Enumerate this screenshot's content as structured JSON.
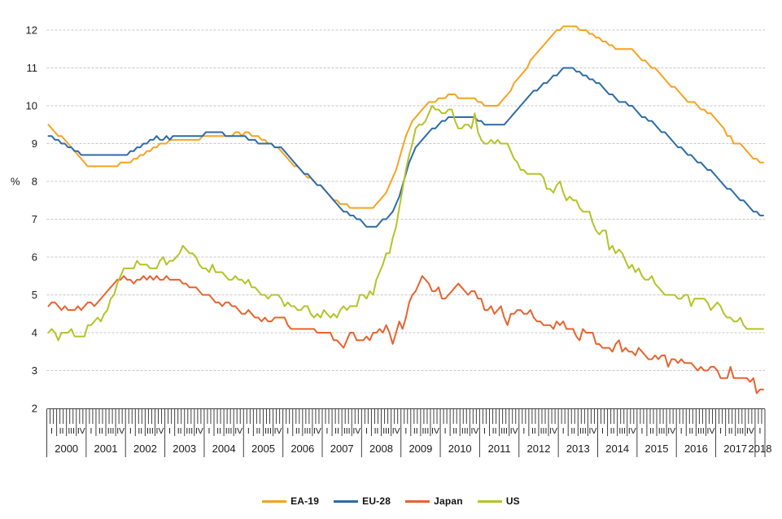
{
  "chart_data": {
    "type": "line",
    "title": "",
    "ylabel": "%",
    "frequency": "monthly",
    "period": "2000-01 to 2018-03",
    "ylim": [
      2,
      12
    ],
    "yticks": [
      2,
      3,
      4,
      5,
      6,
      7,
      8,
      9,
      10,
      11,
      12
    ],
    "grid": "horizontal-dashed",
    "grid_color": "#c6c6c6",
    "axis_color": "#404040",
    "text_color": "#1a1a1a",
    "legend_position": "bottom",
    "x_axis": {
      "quarter_labels": [
        "I",
        "II",
        "III",
        "IV"
      ],
      "years": [
        "2000",
        "2001",
        "2002",
        "2003",
        "2004",
        "2005",
        "2006",
        "2007",
        "2008",
        "2009",
        "2010",
        "2011",
        "2012",
        "2013",
        "2014",
        "2015",
        "2016",
        "2017",
        "2018"
      ]
    },
    "series": [
      {
        "name": "EA-19",
        "color": "#F7A21F",
        "values": [
          9.5,
          9.4,
          9.3,
          9.2,
          9.2,
          9.1,
          9.0,
          8.9,
          8.8,
          8.7,
          8.6,
          8.5,
          8.4,
          8.4,
          8.4,
          8.4,
          8.4,
          8.4,
          8.4,
          8.4,
          8.4,
          8.4,
          8.5,
          8.5,
          8.5,
          8.5,
          8.6,
          8.6,
          8.7,
          8.7,
          8.8,
          8.8,
          8.9,
          8.9,
          9.0,
          9.0,
          9.0,
          9.1,
          9.1,
          9.1,
          9.1,
          9.1,
          9.1,
          9.1,
          9.1,
          9.1,
          9.1,
          9.2,
          9.2,
          9.2,
          9.2,
          9.2,
          9.2,
          9.2,
          9.2,
          9.2,
          9.2,
          9.3,
          9.3,
          9.2,
          9.3,
          9.3,
          9.2,
          9.2,
          9.2,
          9.1,
          9.1,
          9.0,
          9.0,
          8.9,
          8.9,
          8.8,
          8.7,
          8.6,
          8.5,
          8.4,
          8.4,
          8.3,
          8.2,
          8.1,
          8.1,
          8.0,
          7.9,
          7.9,
          7.8,
          7.7,
          7.6,
          7.5,
          7.5,
          7.4,
          7.4,
          7.4,
          7.3,
          7.3,
          7.3,
          7.3,
          7.3,
          7.3,
          7.3,
          7.3,
          7.4,
          7.5,
          7.6,
          7.7,
          7.9,
          8.1,
          8.3,
          8.6,
          8.9,
          9.2,
          9.4,
          9.6,
          9.7,
          9.8,
          9.9,
          10.0,
          10.1,
          10.1,
          10.1,
          10.2,
          10.2,
          10.2,
          10.3,
          10.3,
          10.3,
          10.2,
          10.2,
          10.2,
          10.2,
          10.2,
          10.2,
          10.1,
          10.1,
          10.0,
          10.0,
          10.0,
          10.0,
          10.0,
          10.1,
          10.2,
          10.3,
          10.4,
          10.6,
          10.7,
          10.8,
          10.9,
          11.0,
          11.2,
          11.3,
          11.4,
          11.5,
          11.6,
          11.7,
          11.8,
          11.9,
          12.0,
          12.0,
          12.1,
          12.1,
          12.1,
          12.1,
          12.1,
          12.0,
          12.0,
          12.0,
          11.9,
          11.9,
          11.8,
          11.8,
          11.7,
          11.7,
          11.6,
          11.6,
          11.5,
          11.5,
          11.5,
          11.5,
          11.5,
          11.5,
          11.4,
          11.3,
          11.2,
          11.2,
          11.1,
          11.0,
          11.0,
          10.9,
          10.8,
          10.7,
          10.6,
          10.5,
          10.5,
          10.4,
          10.3,
          10.2,
          10.1,
          10.1,
          10.1,
          10.0,
          9.9,
          9.9,
          9.8,
          9.8,
          9.7,
          9.6,
          9.5,
          9.4,
          9.2,
          9.2,
          9.0,
          9.0,
          9.0,
          8.9,
          8.8,
          8.7,
          8.6,
          8.6,
          8.5,
          8.5
        ]
      },
      {
        "name": "EU-28",
        "color": "#2C6BA8",
        "values": [
          9.2,
          9.2,
          9.1,
          9.1,
          9.0,
          9.0,
          8.9,
          8.9,
          8.8,
          8.8,
          8.7,
          8.7,
          8.7,
          8.7,
          8.7,
          8.7,
          8.7,
          8.7,
          8.7,
          8.7,
          8.7,
          8.7,
          8.7,
          8.7,
          8.7,
          8.8,
          8.8,
          8.9,
          8.9,
          9.0,
          9.0,
          9.1,
          9.1,
          9.2,
          9.1,
          9.1,
          9.2,
          9.1,
          9.2,
          9.2,
          9.2,
          9.2,
          9.2,
          9.2,
          9.2,
          9.2,
          9.2,
          9.2,
          9.3,
          9.3,
          9.3,
          9.3,
          9.3,
          9.3,
          9.2,
          9.2,
          9.2,
          9.2,
          9.2,
          9.2,
          9.2,
          9.1,
          9.1,
          9.1,
          9.0,
          9.0,
          9.0,
          9.0,
          9.0,
          8.9,
          8.9,
          8.9,
          8.8,
          8.7,
          8.6,
          8.5,
          8.4,
          8.3,
          8.2,
          8.2,
          8.1,
          8.0,
          7.9,
          7.9,
          7.8,
          7.7,
          7.6,
          7.5,
          7.4,
          7.3,
          7.2,
          7.2,
          7.1,
          7.1,
          7.0,
          7.0,
          6.9,
          6.8,
          6.8,
          6.8,
          6.8,
          6.9,
          7.0,
          7.0,
          7.1,
          7.2,
          7.4,
          7.6,
          7.9,
          8.2,
          8.5,
          8.7,
          8.9,
          9.0,
          9.1,
          9.2,
          9.3,
          9.4,
          9.4,
          9.5,
          9.6,
          9.6,
          9.7,
          9.7,
          9.7,
          9.7,
          9.7,
          9.7,
          9.7,
          9.7,
          9.7,
          9.6,
          9.6,
          9.5,
          9.5,
          9.5,
          9.5,
          9.5,
          9.5,
          9.5,
          9.6,
          9.7,
          9.8,
          9.9,
          10.0,
          10.1,
          10.2,
          10.3,
          10.4,
          10.4,
          10.5,
          10.6,
          10.6,
          10.7,
          10.8,
          10.8,
          10.9,
          11.0,
          11.0,
          11.0,
          11.0,
          10.9,
          10.9,
          10.8,
          10.8,
          10.7,
          10.7,
          10.6,
          10.6,
          10.5,
          10.4,
          10.3,
          10.3,
          10.2,
          10.1,
          10.1,
          10.1,
          10.0,
          10.0,
          9.9,
          9.8,
          9.7,
          9.7,
          9.6,
          9.6,
          9.5,
          9.4,
          9.3,
          9.3,
          9.2,
          9.1,
          9.0,
          8.9,
          8.9,
          8.8,
          8.7,
          8.7,
          8.6,
          8.5,
          8.5,
          8.4,
          8.3,
          8.3,
          8.2,
          8.1,
          8.0,
          7.9,
          7.8,
          7.8,
          7.7,
          7.6,
          7.5,
          7.5,
          7.4,
          7.3,
          7.2,
          7.2,
          7.1,
          7.1
        ]
      },
      {
        "name": "Japan",
        "color": "#E8622D",
        "values": [
          4.7,
          4.8,
          4.8,
          4.7,
          4.6,
          4.7,
          4.6,
          4.6,
          4.6,
          4.7,
          4.6,
          4.7,
          4.8,
          4.8,
          4.7,
          4.8,
          4.9,
          5.0,
          5.1,
          5.2,
          5.3,
          5.4,
          5.4,
          5.5,
          5.4,
          5.4,
          5.3,
          5.4,
          5.4,
          5.5,
          5.4,
          5.5,
          5.4,
          5.5,
          5.4,
          5.4,
          5.5,
          5.4,
          5.4,
          5.4,
          5.4,
          5.3,
          5.3,
          5.2,
          5.2,
          5.2,
          5.1,
          5.0,
          5.0,
          5.0,
          4.9,
          4.8,
          4.8,
          4.7,
          4.8,
          4.8,
          4.7,
          4.7,
          4.6,
          4.5,
          4.5,
          4.6,
          4.5,
          4.4,
          4.4,
          4.3,
          4.4,
          4.3,
          4.3,
          4.4,
          4.4,
          4.4,
          4.4,
          4.2,
          4.1,
          4.1,
          4.1,
          4.1,
          4.1,
          4.1,
          4.1,
          4.1,
          4.0,
          4.0,
          4.0,
          4.0,
          4.0,
          3.8,
          3.8,
          3.7,
          3.6,
          3.8,
          4.0,
          4.0,
          3.8,
          3.8,
          3.8,
          3.9,
          3.8,
          4.0,
          4.0,
          4.1,
          4.0,
          4.2,
          4.0,
          3.7,
          4.0,
          4.3,
          4.1,
          4.4,
          4.8,
          5.0,
          5.1,
          5.3,
          5.5,
          5.4,
          5.3,
          5.1,
          5.1,
          5.2,
          4.9,
          4.9,
          5.0,
          5.1,
          5.2,
          5.3,
          5.2,
          5.1,
          5.0,
          5.1,
          5.1,
          4.9,
          4.9,
          4.6,
          4.6,
          4.7,
          4.5,
          4.6,
          4.7,
          4.4,
          4.2,
          4.5,
          4.5,
          4.6,
          4.6,
          4.5,
          4.5,
          4.6,
          4.4,
          4.3,
          4.3,
          4.2,
          4.2,
          4.2,
          4.1,
          4.3,
          4.2,
          4.3,
          4.1,
          4.1,
          4.1,
          3.9,
          3.8,
          4.1,
          4.0,
          4.0,
          4.0,
          3.7,
          3.7,
          3.6,
          3.6,
          3.6,
          3.5,
          3.7,
          3.8,
          3.5,
          3.6,
          3.5,
          3.5,
          3.4,
          3.6,
          3.5,
          3.4,
          3.3,
          3.3,
          3.4,
          3.3,
          3.4,
          3.4,
          3.1,
          3.3,
          3.3,
          3.2,
          3.3,
          3.2,
          3.2,
          3.2,
          3.1,
          3.0,
          3.1,
          3.0,
          3.0,
          3.1,
          3.1,
          3.0,
          2.8,
          2.8,
          2.8,
          3.1,
          2.8,
          2.8,
          2.8,
          2.8,
          2.8,
          2.7,
          2.8,
          2.4,
          2.5,
          2.5
        ]
      },
      {
        "name": "US",
        "color": "#B3C327",
        "values": [
          4.0,
          4.1,
          4.0,
          3.8,
          4.0,
          4.0,
          4.0,
          4.1,
          3.9,
          3.9,
          3.9,
          3.9,
          4.2,
          4.2,
          4.3,
          4.4,
          4.3,
          4.5,
          4.6,
          4.9,
          5.0,
          5.3,
          5.5,
          5.7,
          5.7,
          5.7,
          5.7,
          5.9,
          5.8,
          5.8,
          5.8,
          5.7,
          5.7,
          5.7,
          5.9,
          6.0,
          5.8,
          5.9,
          5.9,
          6.0,
          6.1,
          6.3,
          6.2,
          6.1,
          6.1,
          6.0,
          5.8,
          5.7,
          5.7,
          5.6,
          5.8,
          5.6,
          5.6,
          5.6,
          5.5,
          5.4,
          5.4,
          5.5,
          5.4,
          5.4,
          5.3,
          5.4,
          5.2,
          5.2,
          5.1,
          5.0,
          5.0,
          4.9,
          5.0,
          5.0,
          5.0,
          4.9,
          4.7,
          4.8,
          4.7,
          4.7,
          4.6,
          4.6,
          4.7,
          4.7,
          4.5,
          4.4,
          4.5,
          4.4,
          4.6,
          4.5,
          4.4,
          4.5,
          4.4,
          4.6,
          4.7,
          4.6,
          4.7,
          4.7,
          4.7,
          5.0,
          5.0,
          4.9,
          5.1,
          5.0,
          5.4,
          5.6,
          5.8,
          6.1,
          6.1,
          6.5,
          6.8,
          7.3,
          7.8,
          8.3,
          8.7,
          9.0,
          9.4,
          9.5,
          9.5,
          9.6,
          9.8,
          10.0,
          9.9,
          9.9,
          9.8,
          9.8,
          9.9,
          9.9,
          9.6,
          9.4,
          9.4,
          9.5,
          9.5,
          9.4,
          9.8,
          9.3,
          9.1,
          9.0,
          9.0,
          9.1,
          9.0,
          9.1,
          9.0,
          9.0,
          9.0,
          8.8,
          8.6,
          8.5,
          8.3,
          8.3,
          8.2,
          8.2,
          8.2,
          8.2,
          8.2,
          8.1,
          7.8,
          7.8,
          7.7,
          7.9,
          8.0,
          7.7,
          7.5,
          7.6,
          7.5,
          7.5,
          7.3,
          7.2,
          7.2,
          7.2,
          6.9,
          6.7,
          6.6,
          6.7,
          6.7,
          6.2,
          6.3,
          6.1,
          6.2,
          6.1,
          5.9,
          5.7,
          5.8,
          5.6,
          5.7,
          5.5,
          5.4,
          5.4,
          5.5,
          5.3,
          5.2,
          5.1,
          5.0,
          5.0,
          5.0,
          5.0,
          4.9,
          4.9,
          5.0,
          5.0,
          4.7,
          4.9,
          4.9,
          4.9,
          4.9,
          4.8,
          4.6,
          4.7,
          4.8,
          4.7,
          4.5,
          4.4,
          4.4,
          4.3,
          4.3,
          4.4,
          4.2,
          4.1,
          4.1,
          4.1,
          4.1,
          4.1,
          4.1
        ]
      }
    ]
  }
}
